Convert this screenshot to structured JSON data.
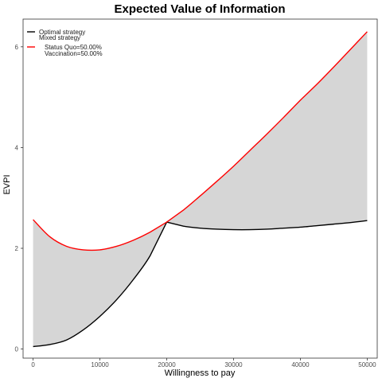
{
  "chart_data": {
    "type": "line",
    "title": "Expected Value of Information",
    "xlabel": "Willingness to pay",
    "ylabel": "EVPI",
    "xlim": [
      -1500,
      51500
    ],
    "ylim": [
      -0.18,
      6.55
    ],
    "x_ticks": [
      0,
      10000,
      20000,
      30000,
      40000,
      50000
    ],
    "y_ticks": [
      0,
      2,
      4,
      6
    ],
    "grid": false,
    "legend_position": "top-left",
    "legend_entries": {
      "optimal": "Optimal strategy",
      "mixed_header": "Mixed strategy",
      "mixed_line1": "Status Quo=50.00%",
      "mixed_line2": "Vaccination=50.00%"
    },
    "shaded_region": "between series",
    "series": [
      {
        "name": "Optimal strategy",
        "color": "#000000",
        "x": [
          0,
          2500,
          5000,
          7500,
          10000,
          12500,
          15000,
          17500,
          20000,
          22500,
          25000,
          27500,
          30000,
          32500,
          35000,
          37500,
          40000,
          42500,
          45000,
          47500,
          50000
        ],
        "y": [
          0.05,
          0.09,
          0.18,
          0.38,
          0.65,
          0.98,
          1.38,
          1.85,
          2.52,
          2.44,
          2.4,
          2.38,
          2.37,
          2.37,
          2.38,
          2.4,
          2.42,
          2.45,
          2.48,
          2.51,
          2.55
        ]
      },
      {
        "name": "Mixed strategy",
        "color": "#ff0000",
        "x": [
          0,
          2500,
          5000,
          7500,
          10000,
          12500,
          15000,
          17500,
          20000,
          22500,
          25000,
          27500,
          30000,
          32500,
          35000,
          37500,
          40000,
          42500,
          45000,
          47500,
          50000
        ],
        "y": [
          2.57,
          2.23,
          2.04,
          1.97,
          1.97,
          2.04,
          2.16,
          2.32,
          2.52,
          2.76,
          3.04,
          3.33,
          3.63,
          3.95,
          4.27,
          4.6,
          4.94,
          5.26,
          5.6,
          5.95,
          6.3
        ]
      }
    ]
  }
}
